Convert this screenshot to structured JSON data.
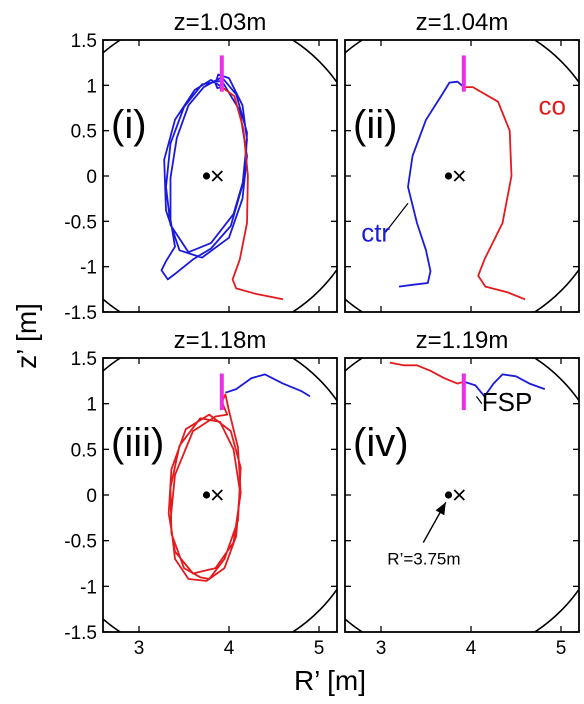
{
  "figure": {
    "xlabel": "R’ [m]",
    "ylabel": "z’ [m]"
  },
  "colors": {
    "co": "#e41a1c",
    "ctr": "#1a1adc",
    "fsp": "#ee2ee6",
    "wall": "#000000"
  },
  "chart_data": [
    {
      "type": "line",
      "panel": "i",
      "title": "z=1.03m",
      "label": "(i)",
      "xlim": [
        2.6,
        5.2
      ],
      "ylim": [
        -1.5,
        1.5
      ],
      "xticks": [
        3,
        4,
        5
      ],
      "yticks": [
        1.5,
        1,
        0.5,
        0,
        -0.5,
        -1,
        -1.5
      ],
      "xtick_labels_shown": false,
      "ytick_labels_shown": true,
      "magnetic_axis": [
        3.75,
        0
      ],
      "cross": [
        3.87,
        0
      ],
      "fsp": {
        "r": 3.92,
        "z": [
          0.93,
          1.33
        ]
      },
      "series": [
        {
          "color": "ctr",
          "points": [
            [
              3.92,
              0.98
            ],
            [
              3.8,
              1.06
            ],
            [
              3.62,
              0.95
            ],
            [
              3.4,
              0.62
            ],
            [
              3.28,
              0.18
            ],
            [
              3.3,
              -0.38
            ],
            [
              3.45,
              -0.82
            ],
            [
              3.7,
              -0.9
            ],
            [
              4.0,
              -0.68
            ],
            [
              4.15,
              -0.25
            ],
            [
              4.2,
              0.22
            ],
            [
              4.12,
              0.72
            ],
            [
              3.92,
              1.05
            ],
            [
              3.7,
              1.01
            ],
            [
              3.5,
              0.76
            ],
            [
              3.35,
              0.36
            ],
            [
              3.3,
              -0.12
            ],
            [
              3.35,
              -0.54
            ],
            [
              3.55,
              -0.84
            ],
            [
              3.8,
              -0.74
            ],
            [
              4.05,
              -0.42
            ],
            [
              4.18,
              0.02
            ],
            [
              4.2,
              0.48
            ],
            [
              4.08,
              0.9
            ],
            [
              3.92,
              1.09
            ],
            [
              3.72,
              0.98
            ],
            [
              3.55,
              0.78
            ],
            [
              3.42,
              0.42
            ],
            [
              3.35,
              -0.02
            ],
            [
              3.35,
              -0.48
            ],
            [
              3.4,
              -0.78
            ],
            [
              3.3,
              -0.94
            ],
            [
              3.25,
              -1.04
            ],
            [
              3.32,
              -1.14
            ],
            [
              3.4,
              -1.08
            ],
            [
              3.6,
              -0.92
            ],
            [
              3.8,
              -0.8
            ],
            [
              4.02,
              -0.55
            ],
            [
              4.15,
              -0.1
            ],
            [
              4.2,
              0.4
            ],
            [
              4.15,
              0.78
            ],
            [
              4.0,
              1.08
            ],
            [
              3.88,
              1.12
            ],
            [
              3.85,
              1.02
            ],
            [
              3.87,
              0.97
            ],
            [
              3.92,
              0.98
            ]
          ]
        },
        {
          "color": "co",
          "points": [
            [
              3.92,
              0.98
            ],
            [
              4.06,
              0.88
            ],
            [
              4.16,
              0.52
            ],
            [
              4.21,
              0.0
            ],
            [
              4.2,
              -0.52
            ],
            [
              4.12,
              -0.92
            ],
            [
              4.04,
              -1.14
            ],
            [
              4.08,
              -1.24
            ],
            [
              4.3,
              -1.3
            ],
            [
              4.6,
              -1.36
            ]
          ]
        }
      ]
    },
    {
      "type": "line",
      "panel": "ii",
      "title": "z=1.04m",
      "label": "(ii)",
      "xlim": [
        2.6,
        5.2
      ],
      "ylim": [
        -1.5,
        1.5
      ],
      "xticks": [
        3,
        4,
        5
      ],
      "yticks": [
        1.5,
        1,
        0.5,
        0,
        -0.5,
        -1,
        -1.5
      ],
      "xtick_labels_shown": false,
      "ytick_labels_shown": false,
      "magnetic_axis": [
        3.75,
        0
      ],
      "cross": [
        3.87,
        0
      ],
      "fsp": {
        "r": 3.92,
        "z": [
          0.93,
          1.33
        ]
      },
      "labels": [
        {
          "text": "co",
          "color": "co",
          "at": [
            4.75,
            0.68
          ]
        },
        {
          "text": "ctr",
          "color": "ctr",
          "at": [
            2.78,
            -0.72
          ]
        }
      ],
      "series": [
        {
          "color": "ctr",
          "points": [
            [
              3.92,
              0.98
            ],
            [
              3.85,
              1.04
            ],
            [
              3.76,
              1.03
            ],
            [
              3.68,
              0.9
            ],
            [
              3.5,
              0.62
            ],
            [
              3.35,
              0.22
            ],
            [
              3.3,
              -0.12
            ],
            [
              3.4,
              -0.52
            ],
            [
              3.5,
              -0.82
            ],
            [
              3.55,
              -1.05
            ],
            [
              3.52,
              -1.18
            ],
            [
              3.35,
              -1.2
            ],
            [
              3.2,
              -1.22
            ]
          ]
        },
        {
          "color": "co",
          "points": [
            [
              3.92,
              0.98
            ],
            [
              4.02,
              0.98
            ],
            [
              4.3,
              0.82
            ],
            [
              4.43,
              0.5
            ],
            [
              4.45,
              0.0
            ],
            [
              4.35,
              -0.52
            ],
            [
              4.15,
              -0.92
            ],
            [
              4.08,
              -1.1
            ],
            [
              4.16,
              -1.22
            ],
            [
              4.4,
              -1.28
            ],
            [
              4.6,
              -1.36
            ]
          ]
        }
      ],
      "pointer_lines": [
        [
          [
            3.3,
            -0.3
          ],
          [
            3.05,
            -0.62
          ]
        ]
      ]
    },
    {
      "type": "line",
      "panel": "iii",
      "title": "z=1.18m",
      "label": "(iii)",
      "xlim": [
        2.6,
        5.2
      ],
      "ylim": [
        -1.5,
        1.5
      ],
      "xticks": [
        3,
        4,
        5
      ],
      "yticks": [
        1.5,
        1,
        0.5,
        0,
        -0.5,
        -1,
        -1.5
      ],
      "xtick_labels_shown": false,
      "ytick_labels_shown": true,
      "magnetic_axis": [
        3.75,
        0
      ],
      "cross": [
        3.87,
        0
      ],
      "fsp": {
        "r": 3.92,
        "z": [
          0.93,
          1.33
        ]
      },
      "series": [
        {
          "color": "co",
          "points": [
            [
              3.92,
              1.02
            ],
            [
              3.96,
              1.1
            ],
            [
              4.0,
              0.92
            ],
            [
              4.1,
              0.52
            ],
            [
              4.13,
              0.02
            ],
            [
              4.05,
              -0.52
            ],
            [
              3.85,
              -0.8
            ],
            [
              3.6,
              -0.86
            ],
            [
              3.4,
              -0.62
            ],
            [
              3.33,
              -0.2
            ],
            [
              3.36,
              0.28
            ],
            [
              3.52,
              0.72
            ],
            [
              3.78,
              0.88
            ],
            [
              4.02,
              0.7
            ],
            [
              4.13,
              0.3
            ],
            [
              4.1,
              -0.28
            ],
            [
              3.95,
              -0.7
            ],
            [
              3.78,
              -0.92
            ],
            [
              3.68,
              -0.9
            ],
            [
              3.5,
              -0.8
            ],
            [
              3.36,
              -0.42
            ],
            [
              3.35,
              0.08
            ],
            [
              3.45,
              0.54
            ],
            [
              3.68,
              0.84
            ],
            [
              3.9,
              0.8
            ],
            [
              4.05,
              0.5
            ],
            [
              4.12,
              0.05
            ],
            [
              4.08,
              -0.45
            ],
            [
              3.95,
              -0.8
            ],
            [
              3.75,
              -0.94
            ],
            [
              3.55,
              -0.92
            ],
            [
              3.4,
              -0.7
            ],
            [
              3.35,
              -0.28
            ],
            [
              3.4,
              0.22
            ],
            [
              3.6,
              0.7
            ],
            [
              3.85,
              0.86
            ],
            [
              3.98,
              0.88
            ],
            [
              3.92,
              1.02
            ]
          ]
        },
        {
          "color": "ctr",
          "points": [
            [
              3.96,
              1.12
            ],
            [
              4.08,
              1.16
            ],
            [
              4.25,
              1.28
            ],
            [
              4.4,
              1.32
            ],
            [
              4.6,
              1.22
            ],
            [
              4.8,
              1.14
            ],
            [
              4.9,
              1.08
            ]
          ]
        }
      ]
    },
    {
      "type": "line",
      "panel": "iv",
      "title": "z=1.19m",
      "label": "(iv)",
      "xlim": [
        2.6,
        5.2
      ],
      "ylim": [
        -1.5,
        1.5
      ],
      "xticks": [
        3,
        4,
        5
      ],
      "yticks": [
        1.5,
        1,
        0.5,
        0,
        -0.5,
        -1,
        -1.5
      ],
      "xtick_labels_shown": true,
      "ytick_labels_shown": false,
      "magnetic_axis": [
        3.75,
        0
      ],
      "cross": [
        3.87,
        0
      ],
      "fsp": {
        "r": 3.92,
        "z": [
          0.93,
          1.33
        ]
      },
      "labels": [
        {
          "text": "FSP",
          "color": "wall",
          "at": [
            4.12,
            0.92
          ]
        },
        {
          "text": "R’=3.75m",
          "color": "wall",
          "small": true,
          "at": [
            3.07,
            -0.76
          ]
        }
      ],
      "series": [
        {
          "color": "co",
          "points": [
            [
              3.1,
              1.45
            ],
            [
              3.25,
              1.42
            ],
            [
              3.4,
              1.42
            ],
            [
              3.55,
              1.36
            ],
            [
              3.7,
              1.28
            ],
            [
              3.85,
              1.22
            ],
            [
              3.92,
              1.24
            ]
          ]
        },
        {
          "color": "ctr",
          "points": [
            [
              3.92,
              1.24
            ],
            [
              4.05,
              1.2
            ],
            [
              4.15,
              1.08
            ],
            [
              4.25,
              1.22
            ],
            [
              4.35,
              1.32
            ],
            [
              4.5,
              1.3
            ],
            [
              4.65,
              1.22
            ],
            [
              4.82,
              1.16
            ]
          ]
        }
      ],
      "pointer_lines": [
        [
          [
            4.06,
            1.08
          ],
          [
            4.12,
            1.0
          ]
        ]
      ],
      "arrows": [
        [
          [
            3.47,
            -0.52
          ],
          [
            3.72,
            -0.08
          ]
        ]
      ]
    }
  ]
}
